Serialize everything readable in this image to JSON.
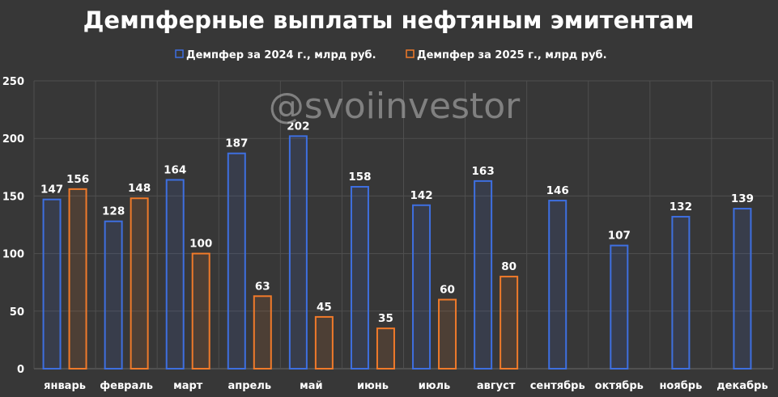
{
  "watermark": "@svoiinvestor",
  "colors": {
    "background": "#373737",
    "series_2024": "#3e6fe0",
    "series_2025": "#f07a2a",
    "grid": "#4f4f4f",
    "text": "#ffffff"
  },
  "chart_data": {
    "type": "bar",
    "title": "Демпферные выплаты нефтяным эмитентам",
    "xlabel": "",
    "ylabel": "",
    "ylim": [
      0,
      250
    ],
    "yticks": [
      "0",
      "50",
      "100",
      "150",
      "200",
      "250"
    ],
    "ytick_values": [
      0,
      50,
      100,
      150,
      200,
      250
    ],
    "grid": true,
    "legend_position": "top-center",
    "categories": [
      "январь",
      "февраль",
      "март",
      "апрель",
      "май",
      "июнь",
      "июль",
      "август",
      "сентябрь",
      "октябрь",
      "ноябрь",
      "декабрь"
    ],
    "series": [
      {
        "name": "Демпфер за 2024 г., млрд руб.",
        "color": "#3e6fe0",
        "values": [
          147,
          128,
          164,
          187,
          202,
          158,
          142,
          163,
          146,
          107,
          132,
          139
        ]
      },
      {
        "name": "Демпфер за 2025 г., млрд руб.",
        "color": "#f07a2a",
        "values": [
          156,
          148,
          100,
          63,
          45,
          35,
          60,
          80,
          null,
          null,
          null,
          null
        ]
      }
    ]
  }
}
